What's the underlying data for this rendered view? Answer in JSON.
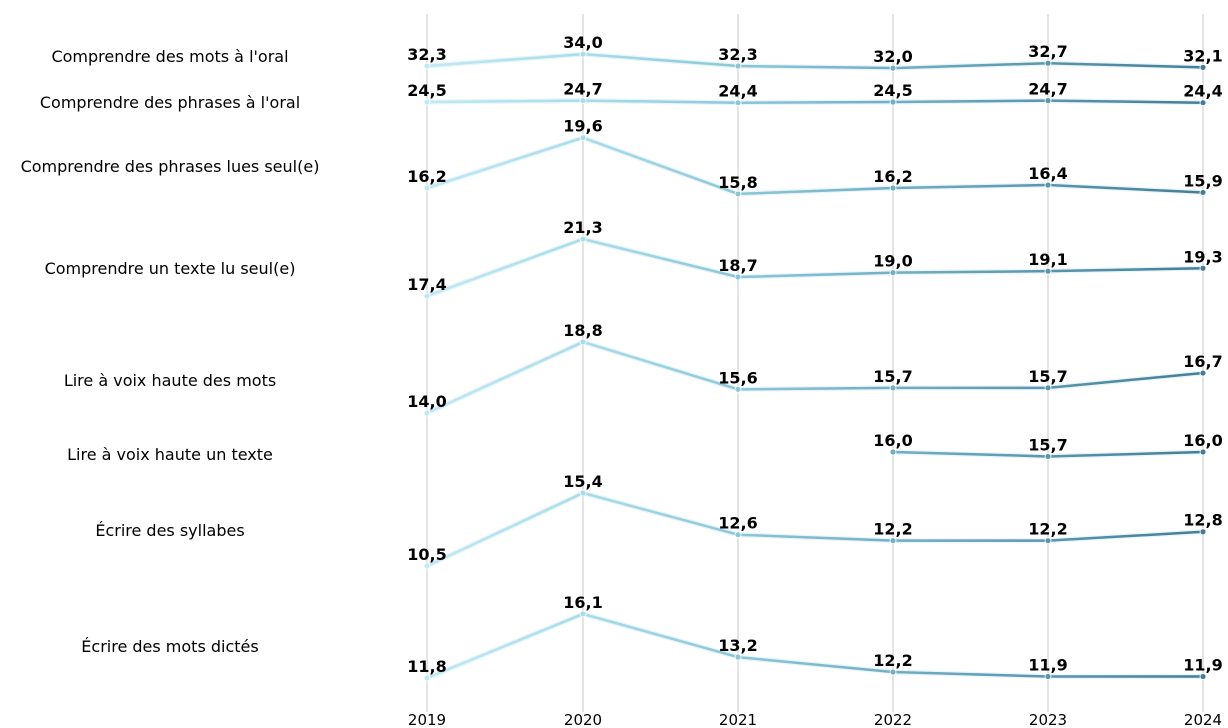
{
  "chart_data": {
    "type": "line",
    "title": "",
    "xlabel": "",
    "ylabel": "",
    "x": [
      "2019",
      "2020",
      "2021",
      "2022",
      "2023",
      "2024"
    ],
    "grid": "vertical",
    "colors": [
      "#bfe9f3",
      "#a8dcea",
      "#8cc6d9",
      "#72aec4",
      "#5a95ad",
      "#467d95"
    ],
    "series": [
      {
        "name": "Comprendre des mots à l'oral",
        "values": [
          32.3,
          34.0,
          32.3,
          32.0,
          32.7,
          32.1
        ],
        "labels": [
          "32,3",
          "34,0",
          "32,3",
          "32,0",
          "32,7",
          "32,1"
        ]
      },
      {
        "name": "Comprendre des phrases à l'oral",
        "values": [
          24.5,
          24.7,
          24.4,
          24.5,
          24.7,
          24.4
        ],
        "labels": [
          "24,5",
          "24,7",
          "24,4",
          "24,5",
          "24,7",
          "24,4"
        ]
      },
      {
        "name": "Comprendre des phrases lues seul(e)",
        "values": [
          16.2,
          19.6,
          15.8,
          16.2,
          16.4,
          15.9
        ],
        "labels": [
          "16,2",
          "19,6",
          "15,8",
          "16,2",
          "16,4",
          "15,9"
        ]
      },
      {
        "name": "Comprendre un texte lu seul(e)",
        "values": [
          17.4,
          21.3,
          18.7,
          19.0,
          19.1,
          19.3
        ],
        "labels": [
          "17,4",
          "21,3",
          "18,7",
          "19,0",
          "19,1",
          "19,3"
        ]
      },
      {
        "name": "Lire à voix haute des mots",
        "values": [
          14.0,
          18.8,
          15.6,
          15.7,
          15.7,
          16.7
        ],
        "labels": [
          "14,0",
          "18,8",
          "15,6",
          "15,7",
          "15,7",
          "16,7"
        ]
      },
      {
        "name": "Lire à voix haute un texte",
        "values": [
          null,
          null,
          null,
          16.0,
          15.7,
          16.0
        ],
        "labels": [
          null,
          null,
          null,
          "16,0",
          "15,7",
          "16,0"
        ]
      },
      {
        "name": "Écrire des syllabes",
        "values": [
          10.5,
          15.4,
          12.6,
          12.2,
          12.2,
          12.8
        ],
        "labels": [
          "10,5",
          "15,4",
          "12,6",
          "12,2",
          "12,2",
          "12,8"
        ]
      },
      {
        "name": "Écrire des mots dictés",
        "values": [
          11.8,
          16.1,
          13.2,
          12.2,
          11.9,
          11.9
        ],
        "labels": [
          "11,8",
          "16,1",
          "13,2",
          "12,2",
          "11,9",
          "11,9"
        ]
      }
    ]
  }
}
